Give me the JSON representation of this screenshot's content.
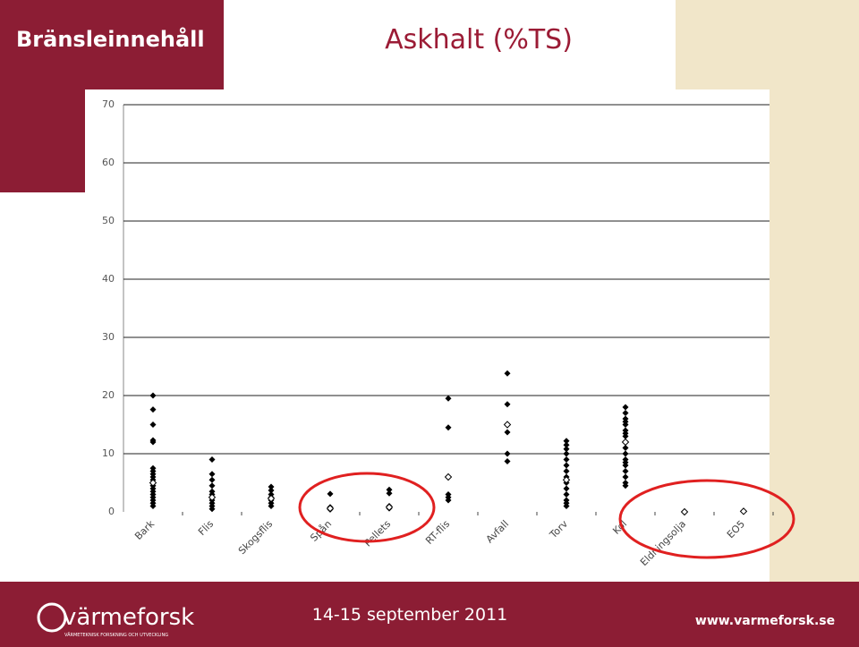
{
  "slide": {
    "header": "Bränsleinnehåll",
    "date": "14-15 september 2011",
    "logo": "värmeforsk",
    "tagline": "VÄRMETEKNISK FORSKNING OCH UTVECKLING",
    "url": "www.varmeforsk.se"
  },
  "chart_data": {
    "type": "strip",
    "title": "Askhalt (%TS)",
    "categories": [
      "Bark",
      "Flis",
      "Skogsflis",
      "Spån",
      "Pellets",
      "RT-flis",
      "Avfall",
      "Torv",
      "Kol",
      "Eldningsolja",
      "EO5"
    ],
    "values": [
      [
        20,
        17.6,
        15,
        12.3,
        12,
        7.5,
        7,
        6.5,
        6,
        5.5,
        5,
        4.5,
        4,
        3.5,
        3,
        2.5,
        2,
        1.5,
        1
      ],
      [
        9,
        6.5,
        5.5,
        4.5,
        3.5,
        3,
        2.5,
        2,
        1.5,
        1,
        0.5
      ],
      [
        4.3,
        3.7,
        3,
        2.5,
        2,
        1.5,
        1
      ],
      [
        3.1,
        0.8,
        0.4
      ],
      [
        3.8,
        3.2,
        1,
        0.6
      ],
      [
        19.5,
        14.5,
        3,
        2.5,
        2
      ],
      [
        23.8,
        18.5,
        13.7,
        10,
        8.7
      ],
      [
        12.2,
        11.5,
        10.8,
        10,
        9,
        8,
        7,
        6,
        5,
        4,
        3,
        2,
        1.5,
        1
      ],
      [
        18,
        17,
        16,
        15.5,
        15,
        14,
        13.5,
        13,
        12,
        11,
        10,
        9,
        8.5,
        8,
        7,
        6,
        5,
        4.5
      ],
      [],
      []
    ],
    "means": [
      5,
      2.5,
      2.3,
      0.6,
      0.8,
      6,
      15,
      5.5,
      12,
      0,
      0.1
    ],
    "color": "#000000",
    "ylim": [
      0,
      70
    ],
    "yticks": [
      0,
      10,
      20,
      30,
      40,
      50,
      60,
      70
    ],
    "grid": true
  }
}
